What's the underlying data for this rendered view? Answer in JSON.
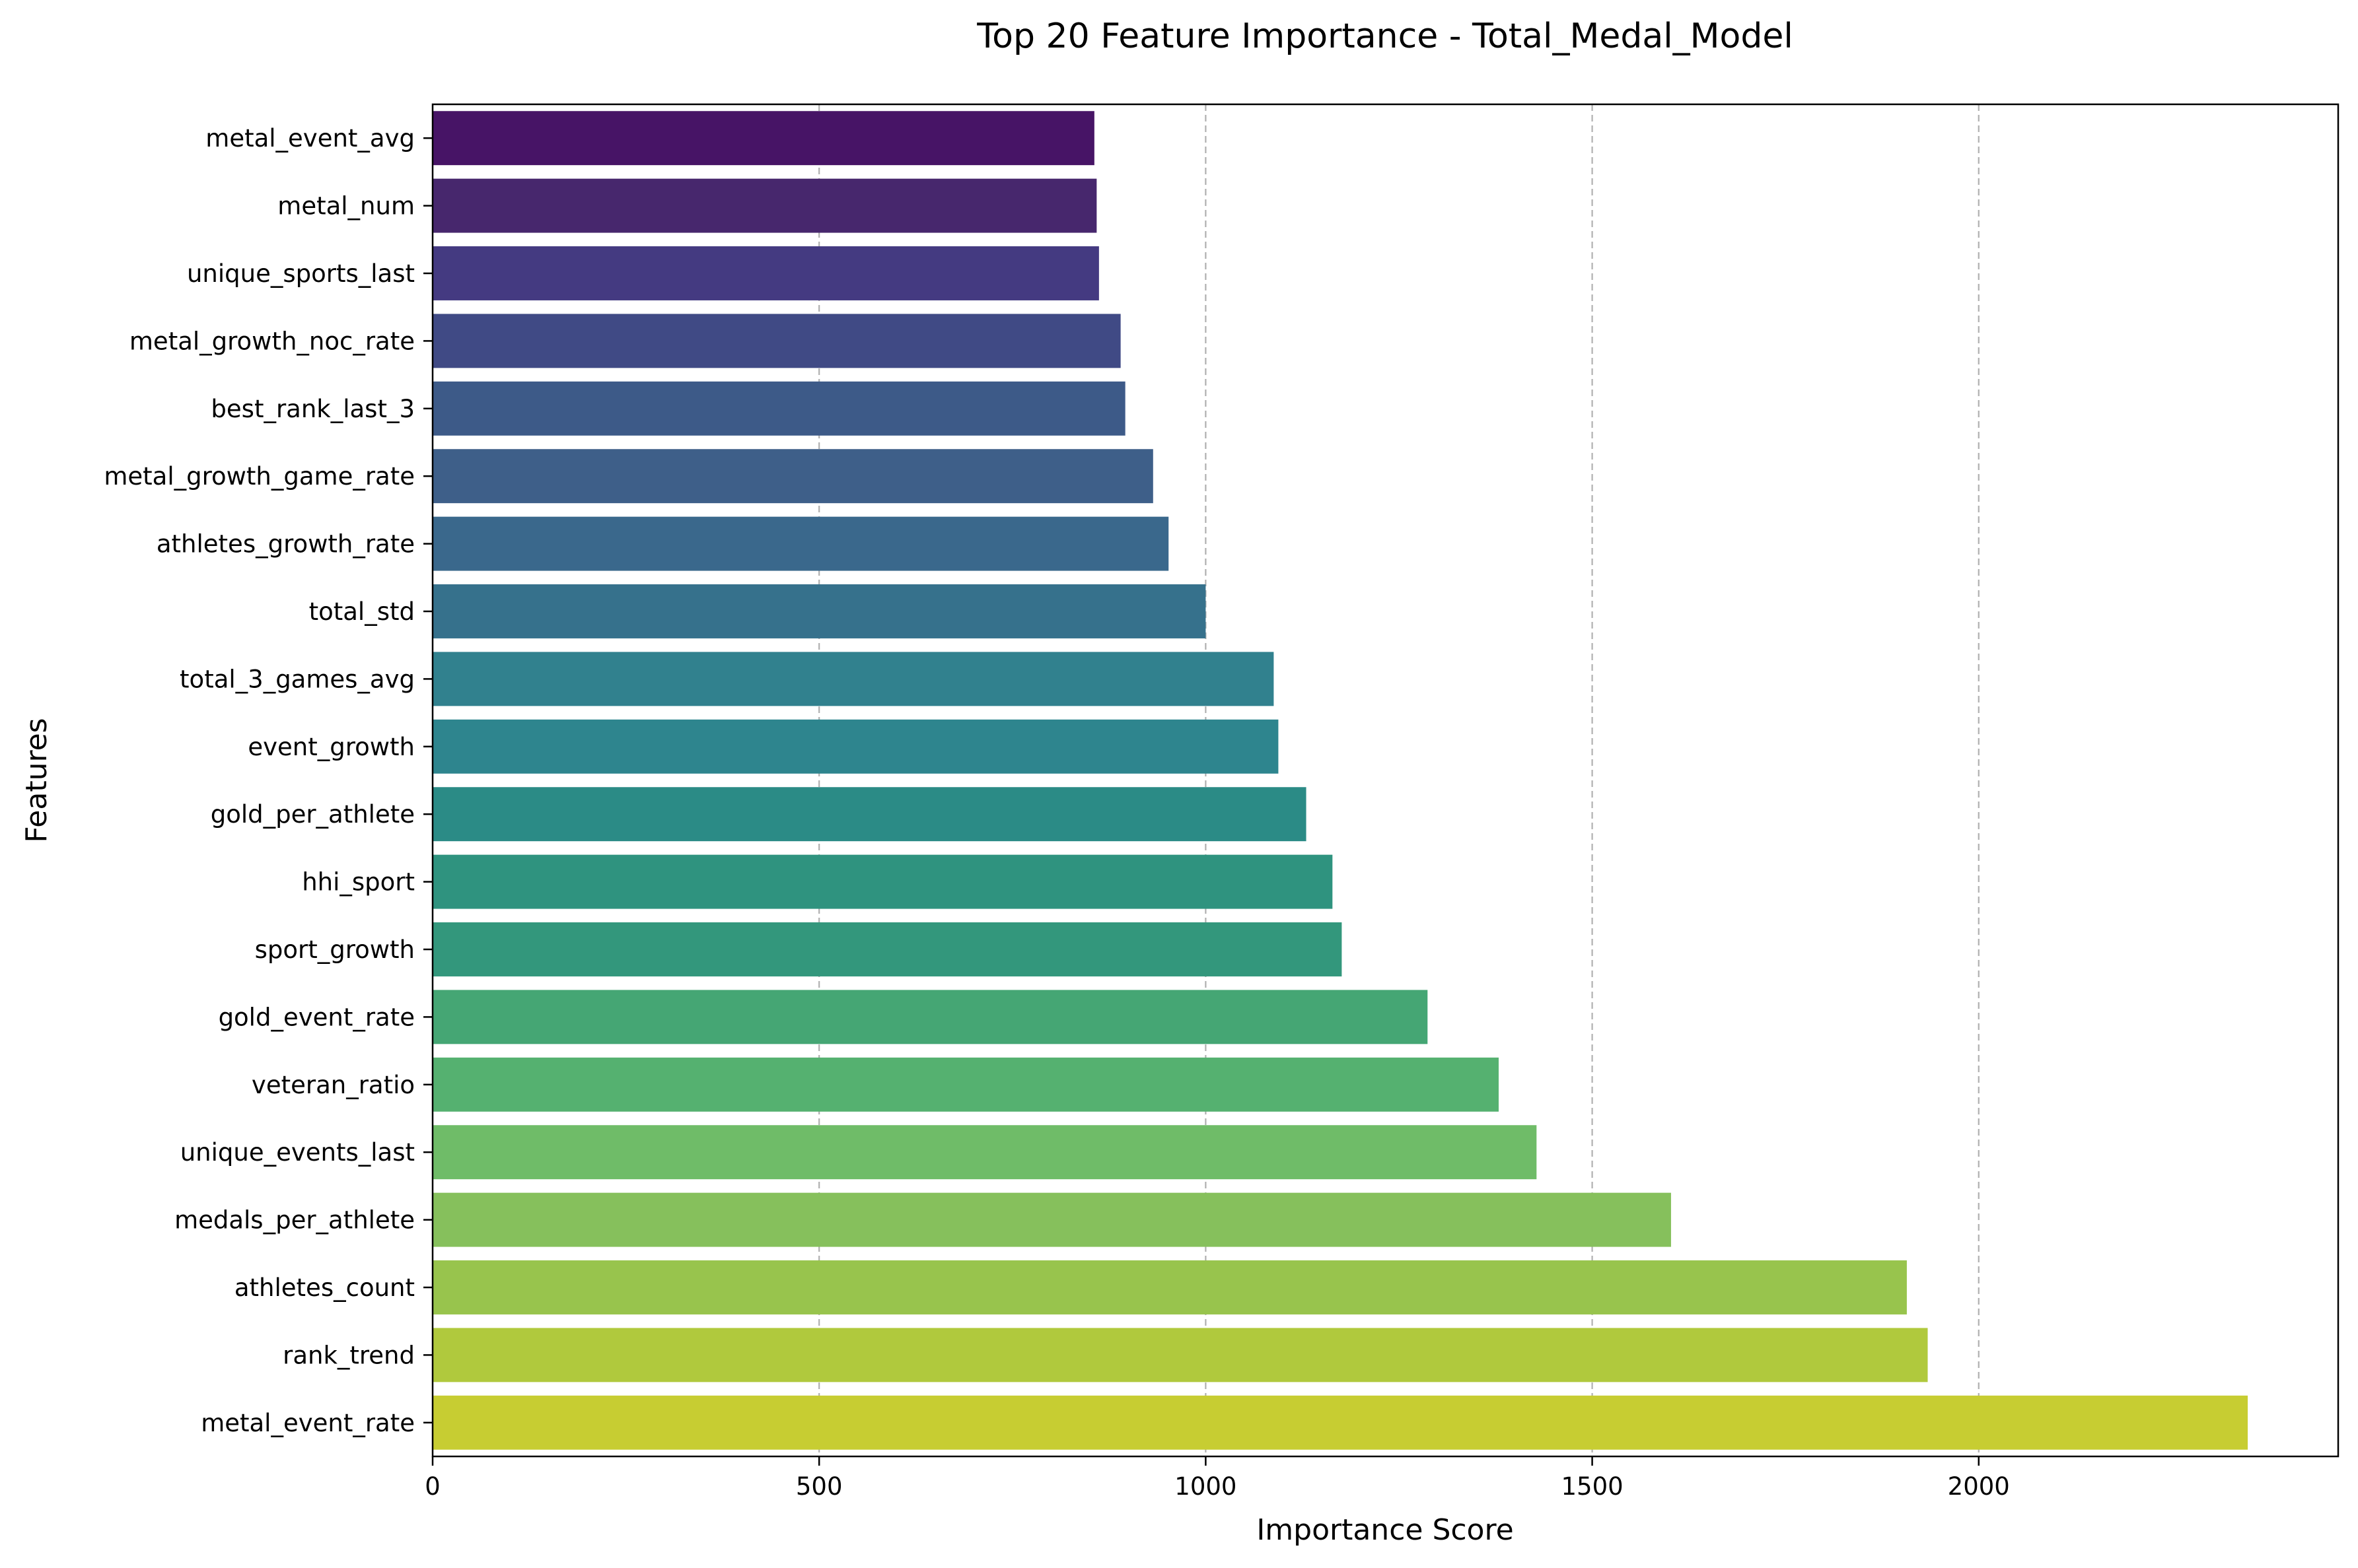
{
  "chart_data": {
    "type": "bar",
    "orientation": "horizontal",
    "title": "Top 20 Feature Importance - Total_Medal_Model",
    "xlabel": "Importance Score",
    "ylabel": "Features",
    "xlim": [
      0,
      2465
    ],
    "xticks": [
      0,
      500,
      1000,
      1500,
      2000
    ],
    "grid": "x-axis dashed",
    "legend": "none",
    "colormap": "viridis",
    "categories": [
      "metal_event_avg",
      "metal_num",
      "unique_sports_last",
      "metal_growth_noc_rate",
      "best_rank_last_3",
      "metal_growth_game_rate",
      "athletes_growth_rate",
      "total_std",
      "total_3_games_avg",
      "event_growth",
      "gold_per_athlete",
      "hhi_sport",
      "sport_growth",
      "gold_event_rate",
      "veteran_ratio",
      "unique_events_last",
      "medals_per_athlete",
      "athletes_count",
      "rank_trend",
      "metal_event_rate"
    ],
    "values": [
      856,
      859,
      862,
      890,
      896,
      932,
      952,
      1000,
      1088,
      1094,
      1130,
      1164,
      1176,
      1287,
      1379,
      1428,
      1602,
      1907,
      1934,
      2348
    ],
    "colors": [
      "#471466",
      "#47276d",
      "#443a81",
      "#404a85",
      "#3d5a88",
      "#3e5f89",
      "#3a688c",
      "#36718c",
      "#31818e",
      "#2e858e",
      "#2b8b86",
      "#2f937f",
      "#33977c",
      "#45a674",
      "#55b170",
      "#6fbc68",
      "#86c05c",
      "#98c44d",
      "#b0c93d",
      "#c7cd32"
    ]
  }
}
